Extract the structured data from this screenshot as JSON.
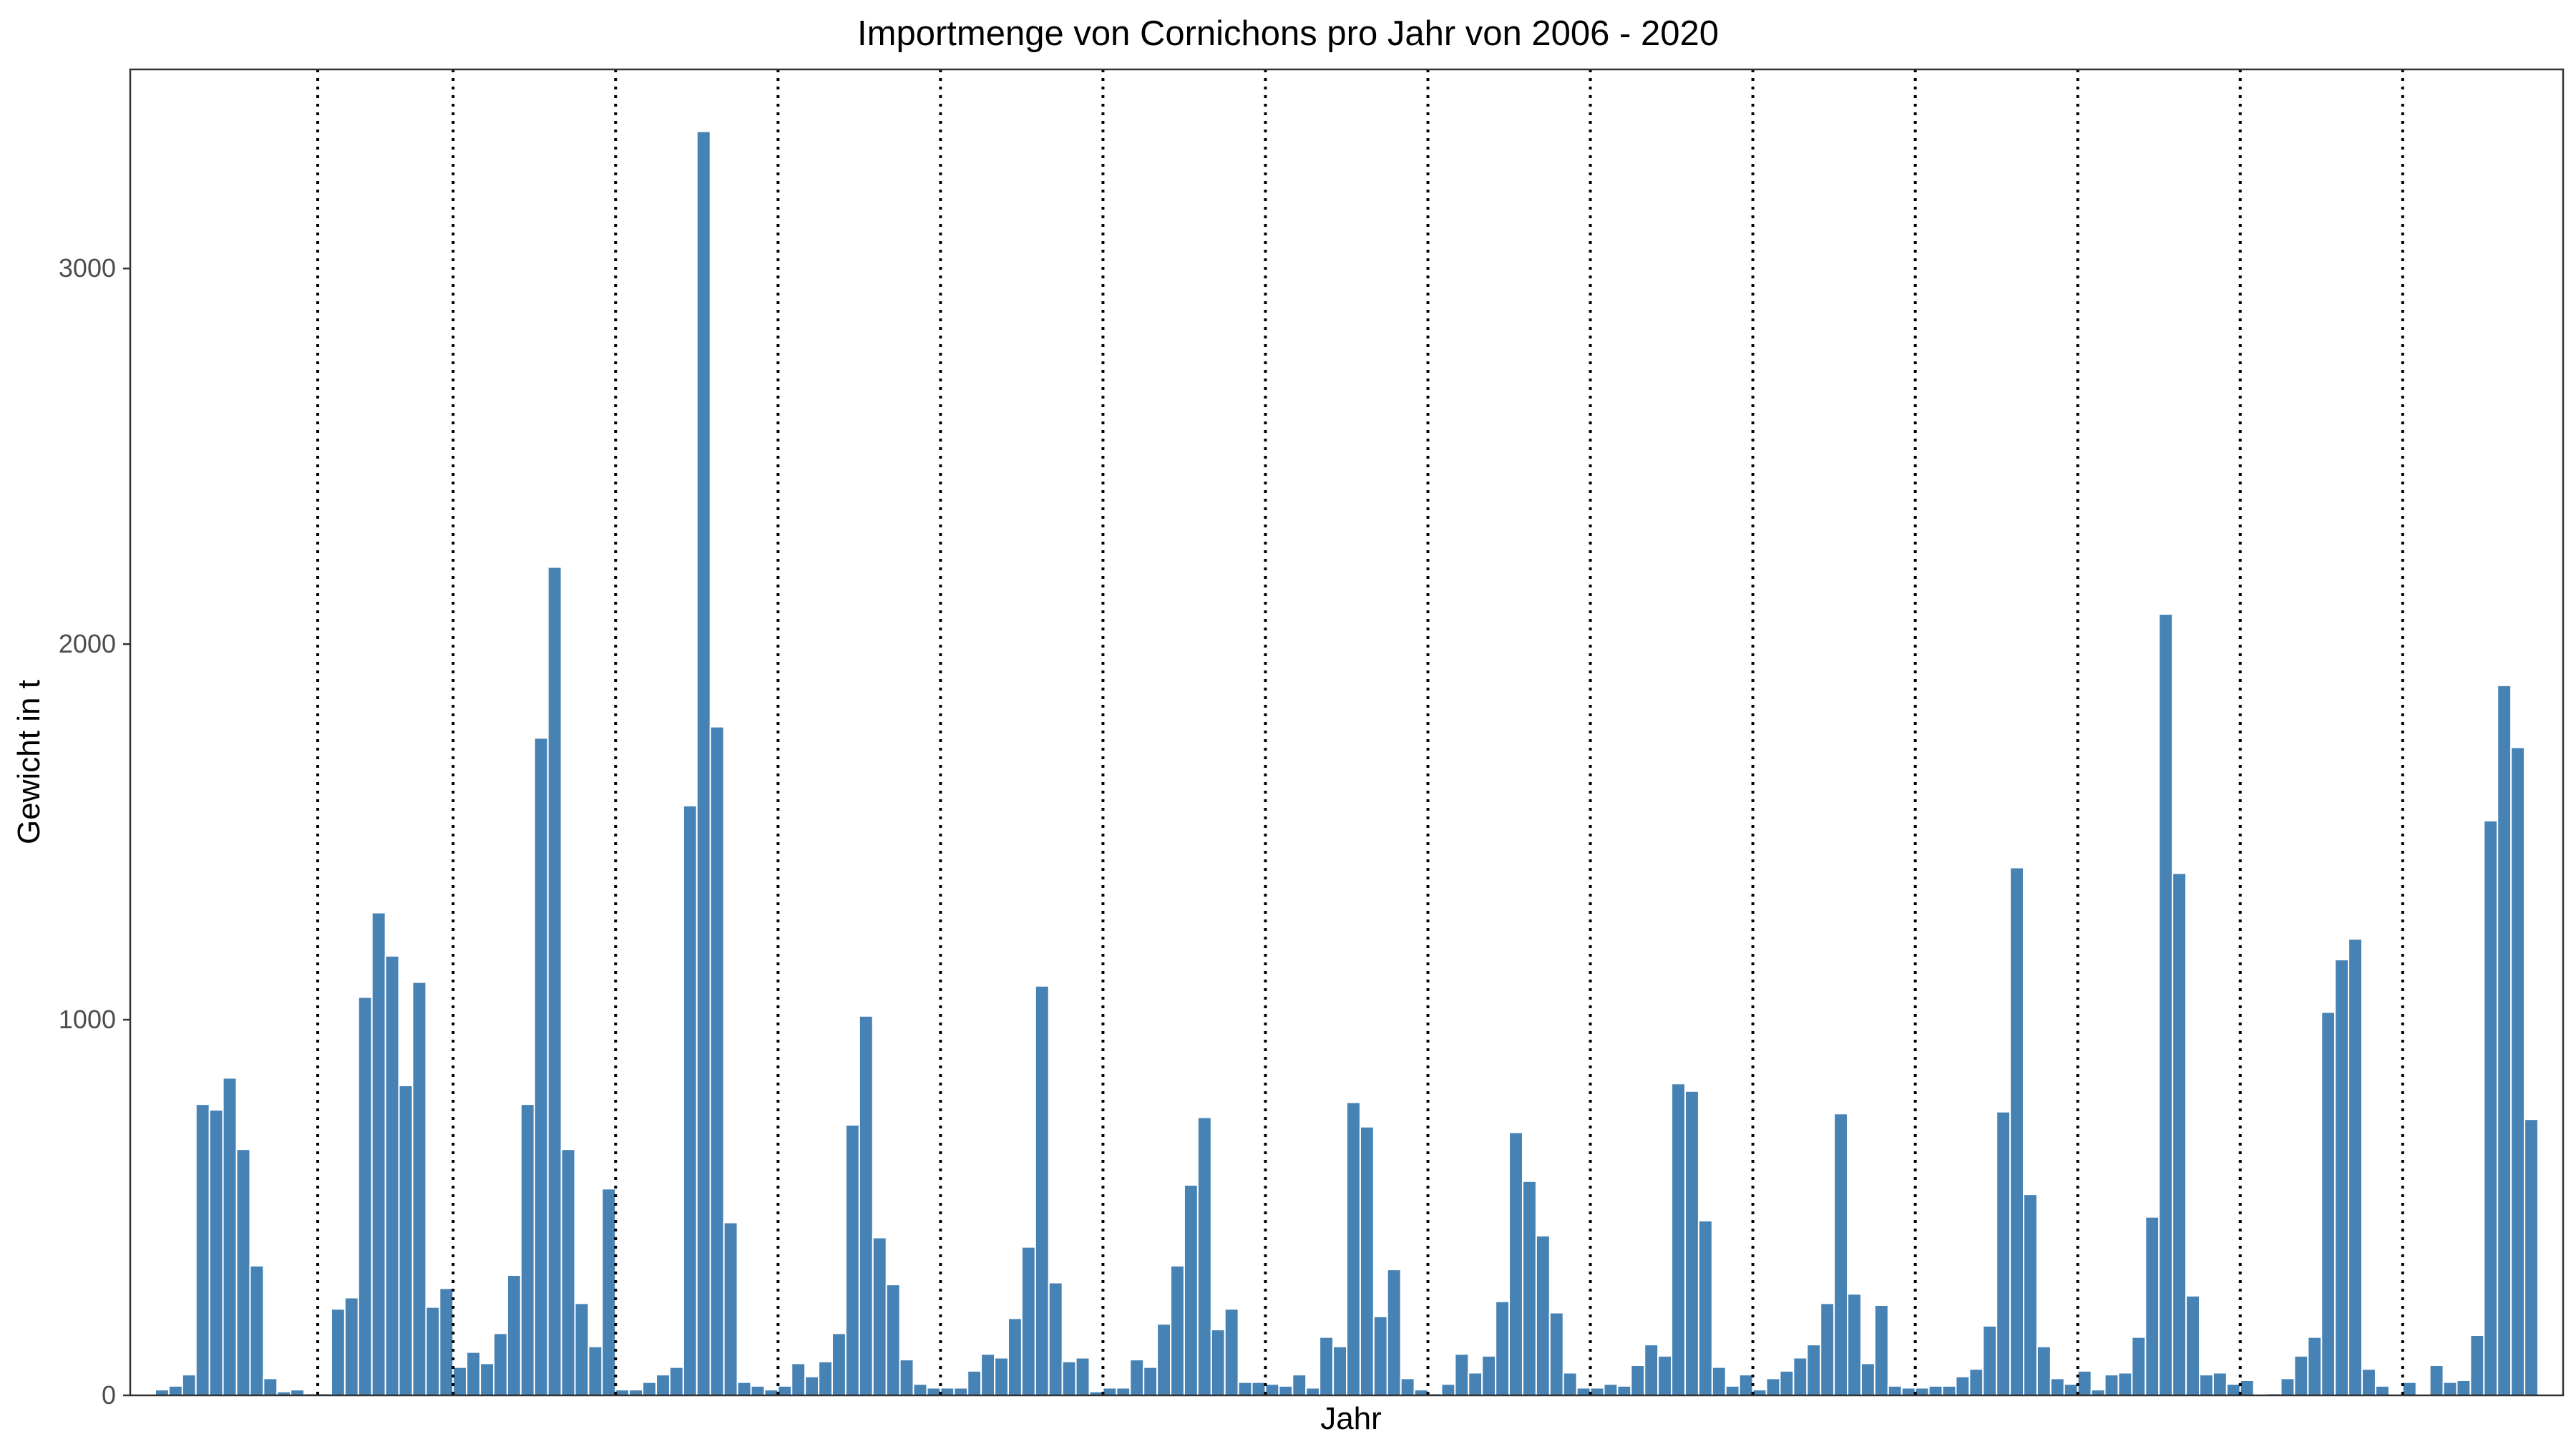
{
  "chart_data": {
    "type": "bar",
    "title": "Importmenge von Cornichons pro Jahr von 2006 - 2020",
    "xlabel": "Jahr",
    "ylabel": "Gewicht in t",
    "ylim": [
      0,
      3530
    ],
    "y_ticks": [
      0,
      1000,
      2000,
      3000
    ],
    "grid": false,
    "legend": "none",
    "bar_color": "#4682b4",
    "separator_style": "dotted vertical line between years",
    "years": [
      {
        "values": [
          15,
          25,
          55,
          775,
          760,
          845,
          655,
          345,
          45,
          10,
          15,
          5
        ]
      },
      {
        "values": [
          5,
          230,
          260,
          1060,
          1285,
          1170,
          825,
          1100,
          235,
          285
        ]
      },
      {
        "values": [
          75,
          115,
          85,
          165,
          320,
          775,
          1750,
          2205,
          655,
          245,
          130,
          550
        ]
      },
      {
        "values": [
          15,
          15,
          35,
          55,
          75,
          1570,
          3365,
          1780,
          460,
          35,
          25,
          15
        ]
      },
      {
        "values": [
          25,
          85,
          50,
          90,
          165,
          720,
          1010,
          420,
          295,
          95,
          30,
          20
        ]
      },
      {
        "values": [
          20,
          20,
          65,
          110,
          100,
          205,
          395,
          1090,
          300,
          90,
          100,
          10
        ]
      },
      {
        "values": [
          20,
          20,
          95,
          75,
          190,
          345,
          560,
          740,
          175,
          230,
          35,
          35
        ]
      },
      {
        "values": [
          30,
          25,
          55,
          20,
          155,
          130,
          780,
          715,
          210,
          335,
          45,
          15
        ]
      },
      {
        "values": [
          5,
          30,
          110,
          60,
          105,
          250,
          700,
          570,
          425,
          220,
          60,
          20
        ]
      },
      {
        "values": [
          20,
          30,
          25,
          80,
          135,
          105,
          830,
          810,
          465,
          75,
          25,
          55
        ]
      },
      {
        "values": [
          15,
          45,
          65,
          100,
          135,
          245,
          750,
          270,
          85,
          240,
          25,
          20
        ]
      },
      {
        "values": [
          20,
          25,
          25,
          50,
          70,
          185,
          755,
          1405,
          535,
          130,
          45,
          30
        ]
      },
      {
        "values": [
          65,
          15,
          55,
          60,
          155,
          475,
          2080,
          1390,
          265,
          55,
          60,
          30
        ]
      },
      {
        "values": [
          40,
          0,
          5,
          45,
          105,
          155,
          1020,
          1160,
          1215,
          70,
          25,
          0
        ]
      },
      {
        "values": [
          35,
          0,
          80,
          35,
          40,
          160,
          1530,
          1890,
          1725,
          735
        ]
      }
    ]
  }
}
